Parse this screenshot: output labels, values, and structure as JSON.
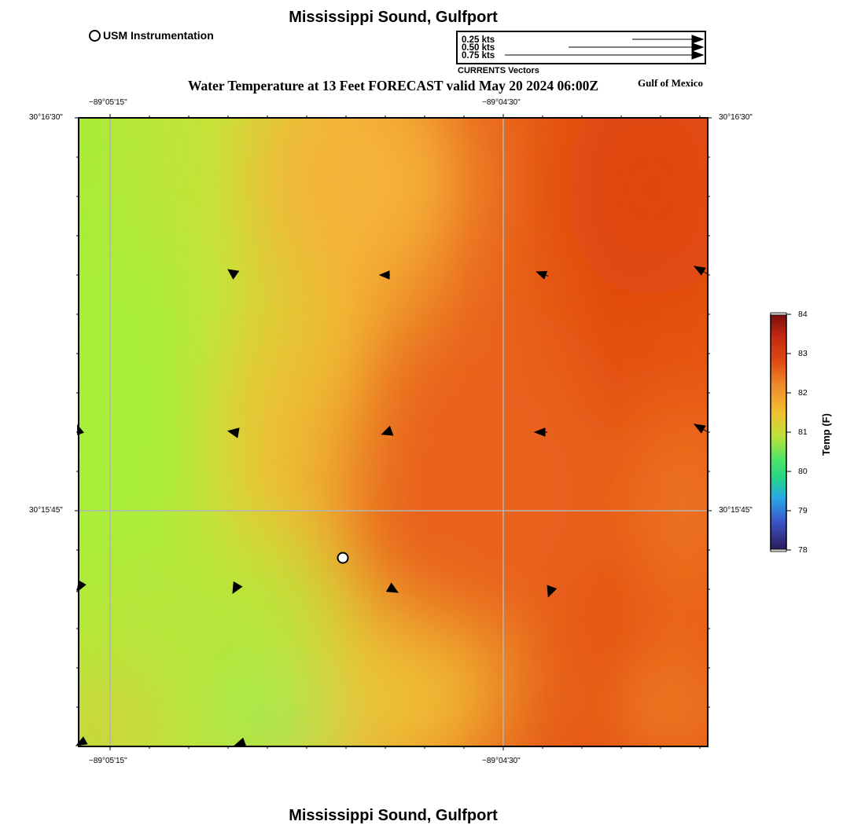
{
  "header": {
    "title": "Mississippi Sound, Gulfport",
    "footer_title": "Mississippi Sound, Gulfport",
    "subtitle": "Water Temperature at 13 Feet FORECAST valid May 20 2024 06:00Z",
    "region_label": "Gulf of Mexico"
  },
  "station_legend": {
    "label": "USM Instrumentation",
    "icon": "open-circle-icon"
  },
  "vector_legend": {
    "rows": [
      {
        "label": "0.25 kts",
        "speed_kts": 0.25
      },
      {
        "label": "0.50 kts",
        "speed_kts": 0.5
      },
      {
        "label": "0.75 kts",
        "speed_kts": 0.75
      }
    ],
    "caption": "CURRENTS Vectors"
  },
  "map": {
    "lon_ticks_top": [
      "−89°05'15\"",
      "−89°04'30\""
    ],
    "lon_ticks_bottom": [
      "−89°05'15\"",
      "−89°04'30\""
    ],
    "lat_ticks_left": [
      "30°16'30\"",
      "30°15'45\""
    ],
    "lat_ticks_right": [
      "30°16'30\"",
      "30°15'45\""
    ],
    "grid": true,
    "station_marker": "usm-instrument-marker"
  },
  "colorbar": {
    "title": "Temp (F)",
    "min": 78,
    "max": 84,
    "ticks": [
      "84",
      "83",
      "82",
      "81",
      "80",
      "79",
      "78"
    ],
    "colors": [
      "#7a0f0f",
      "#e04a12",
      "#ee8a2a",
      "#f2c12e",
      "#b8e23a",
      "#22d38a",
      "#2aa7e8",
      "#3a55c8",
      "#2b1a55"
    ]
  }
}
